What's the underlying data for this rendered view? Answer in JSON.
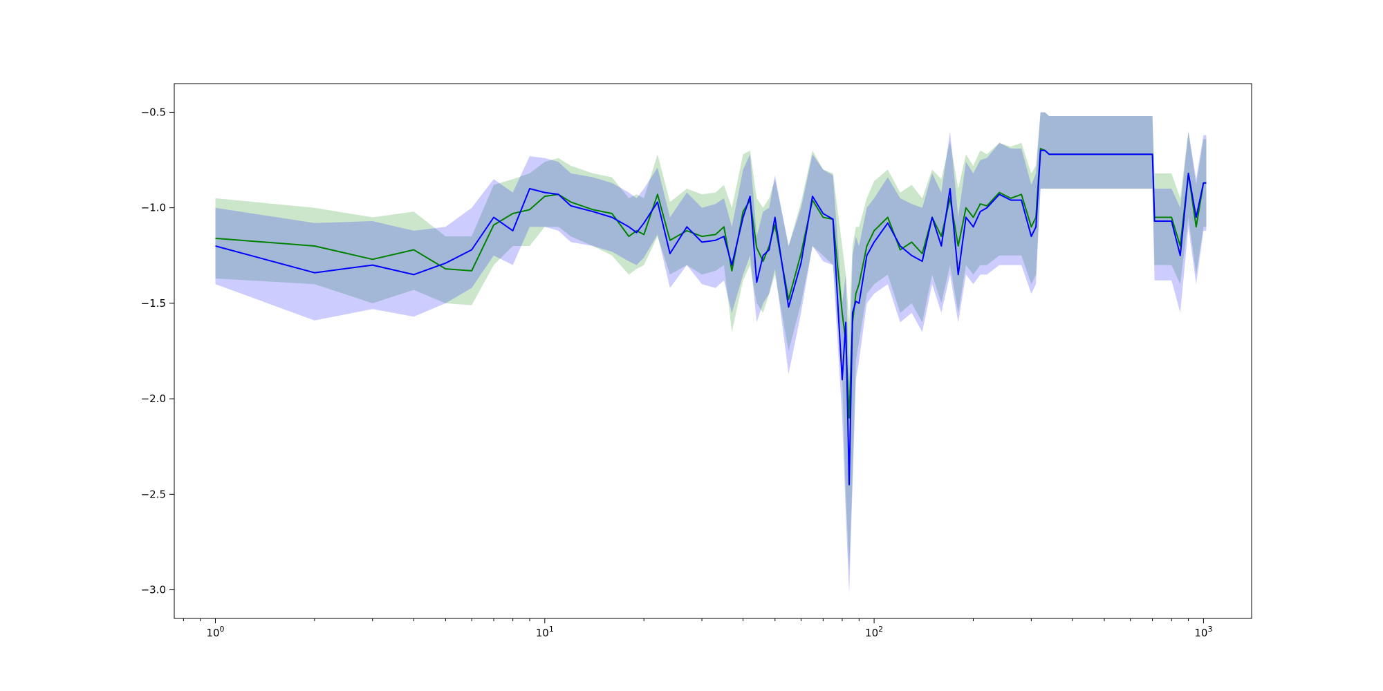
{
  "chart_data": {
    "type": "line",
    "title": "",
    "xlabel": "",
    "ylabel": "",
    "xscale": "log",
    "xlim": [
      0.75,
      1400
    ],
    "ylim": [
      -3.15,
      -0.35
    ],
    "xticks": [
      {
        "value": 1,
        "base": "10",
        "exp": "0"
      },
      {
        "value": 10,
        "base": "10",
        "exp": "1"
      },
      {
        "value": 100,
        "base": "10",
        "exp": "2"
      },
      {
        "value": 1000,
        "base": "10",
        "exp": "3"
      }
    ],
    "yticks": [
      {
        "value": -0.5,
        "label": "−0.5"
      },
      {
        "value": -1.0,
        "label": "−1.0"
      },
      {
        "value": -1.5,
        "label": "−1.5"
      },
      {
        "value": -2.0,
        "label": "−2.0"
      },
      {
        "value": -2.5,
        "label": "−2.5"
      },
      {
        "value": -3.0,
        "label": "−3.0"
      }
    ],
    "grid": false,
    "legend": "none",
    "series": [
      {
        "color": "#008000",
        "x": [
          1,
          2,
          3,
          4,
          5,
          6,
          7,
          8,
          9,
          10,
          11,
          12,
          14,
          16,
          18,
          19,
          20,
          22,
          24,
          27,
          30,
          33,
          35,
          37,
          40,
          42,
          44,
          46,
          48,
          50,
          55,
          60,
          65,
          70,
          75,
          80,
          82,
          84,
          86,
          88,
          90,
          95,
          100,
          110,
          120,
          130,
          140,
          150,
          160,
          170,
          180,
          190,
          200,
          210,
          220,
          240,
          260,
          280,
          300,
          310,
          320,
          330,
          340,
          400,
          500,
          600,
          700,
          710,
          720,
          800,
          850,
          900,
          950,
          1000,
          1020
        ],
        "y": [
          -1.16,
          -1.2,
          -1.27,
          -1.22,
          -1.32,
          -1.33,
          -1.09,
          -1.03,
          -1.01,
          -0.94,
          -0.93,
          -0.97,
          -1.01,
          -1.03,
          -1.15,
          -1.12,
          -1.14,
          -0.93,
          -1.17,
          -1.12,
          -1.15,
          -1.14,
          -1.1,
          -1.33,
          -1.02,
          -0.96,
          -1.21,
          -1.28,
          -1.2,
          -1.09,
          -1.48,
          -1.24,
          -0.96,
          -1.05,
          -1.06,
          -1.55,
          -1.7,
          -2.1,
          -1.6,
          -1.45,
          -1.4,
          -1.2,
          -1.12,
          -1.05,
          -1.22,
          -1.18,
          -1.24,
          -1.05,
          -1.15,
          -0.95,
          -1.2,
          -1.0,
          -1.05,
          -0.98,
          -0.99,
          -0.92,
          -0.95,
          -0.93,
          -1.1,
          -1.05,
          -0.69,
          -0.7,
          -0.72,
          -0.72,
          -0.72,
          -0.72,
          -0.72,
          -1.05,
          -1.05,
          -1.05,
          -1.2,
          -0.82,
          -1.1,
          -0.87,
          -0.87
        ],
        "y_lower": [
          -1.37,
          -1.4,
          -1.5,
          -1.43,
          -1.5,
          -1.51,
          -1.3,
          -1.2,
          -1.2,
          -1.1,
          -1.1,
          -1.15,
          -1.2,
          -1.25,
          -1.35,
          -1.32,
          -1.3,
          -1.15,
          -1.35,
          -1.3,
          -1.35,
          -1.33,
          -1.3,
          -1.65,
          -1.38,
          -1.3,
          -1.5,
          -1.55,
          -1.45,
          -1.35,
          -1.75,
          -1.5,
          -1.2,
          -1.25,
          -1.3,
          -1.9,
          -2.5,
          -2.9,
          -2.4,
          -1.8,
          -1.7,
          -1.45,
          -1.4,
          -1.35,
          -1.55,
          -1.5,
          -1.6,
          -1.35,
          -1.5,
          -1.3,
          -1.55,
          -1.3,
          -1.35,
          -1.3,
          -1.3,
          -1.25,
          -1.25,
          -1.25,
          -1.4,
          -1.35,
          -0.9,
          -0.9,
          -0.9,
          -0.9,
          -0.9,
          -0.9,
          -0.9,
          -1.3,
          -1.3,
          -1.3,
          -1.4,
          -1.05,
          -1.35,
          -1.1,
          -1.1
        ],
        "y_upper": [
          -0.95,
          -1.0,
          -1.05,
          -1.02,
          -1.15,
          -1.15,
          -0.88,
          -0.85,
          -0.82,
          -0.76,
          -0.74,
          -0.78,
          -0.82,
          -0.84,
          -0.95,
          -0.93,
          -0.95,
          -0.72,
          -0.97,
          -0.9,
          -0.93,
          -0.92,
          -0.88,
          -1.0,
          -0.72,
          -0.7,
          -0.95,
          -1.0,
          -0.95,
          -0.85,
          -1.2,
          -0.97,
          -0.7,
          -0.8,
          -0.82,
          -1.2,
          -1.35,
          -1.6,
          -1.2,
          -1.1,
          -1.1,
          -0.95,
          -0.86,
          -0.8,
          -0.92,
          -0.88,
          -0.95,
          -0.8,
          -0.85,
          -0.65,
          -0.9,
          -0.72,
          -0.78,
          -0.7,
          -0.72,
          -0.66,
          -0.68,
          -0.66,
          -0.82,
          -0.78,
          -0.5,
          -0.5,
          -0.52,
          -0.52,
          -0.52,
          -0.52,
          -0.52,
          -0.82,
          -0.82,
          -0.82,
          -0.95,
          -0.6,
          -0.88,
          -0.64,
          -0.64
        ]
      },
      {
        "color": "#0000ff",
        "x": [
          1,
          2,
          3,
          4,
          5,
          6,
          7,
          8,
          9,
          10,
          11,
          12,
          14,
          16,
          18,
          19,
          20,
          22,
          24,
          27,
          30,
          33,
          35,
          37,
          40,
          42,
          44,
          46,
          48,
          50,
          55,
          60,
          65,
          70,
          75,
          80,
          82,
          84,
          86,
          88,
          90,
          95,
          100,
          110,
          120,
          130,
          140,
          150,
          160,
          170,
          180,
          190,
          200,
          210,
          220,
          240,
          260,
          280,
          300,
          310,
          320,
          330,
          340,
          400,
          500,
          600,
          700,
          710,
          720,
          800,
          850,
          900,
          950,
          1000,
          1020
        ],
        "y": [
          -1.2,
          -1.34,
          -1.3,
          -1.35,
          -1.29,
          -1.22,
          -1.05,
          -1.12,
          -0.9,
          -0.92,
          -0.93,
          -0.99,
          -1.02,
          -1.05,
          -1.1,
          -1.13,
          -1.08,
          -0.97,
          -1.24,
          -1.1,
          -1.18,
          -1.17,
          -1.15,
          -1.3,
          -1.05,
          -0.94,
          -1.39,
          -1.25,
          -1.22,
          -1.05,
          -1.52,
          -1.29,
          -0.94,
          -1.03,
          -1.06,
          -1.9,
          -1.6,
          -2.45,
          -1.55,
          -1.49,
          -1.5,
          -1.25,
          -1.18,
          -1.08,
          -1.2,
          -1.25,
          -1.28,
          -1.05,
          -1.2,
          -0.9,
          -1.35,
          -1.05,
          -1.1,
          -1.02,
          -1.0,
          -0.93,
          -0.96,
          -0.96,
          -1.15,
          -1.1,
          -0.7,
          -0.7,
          -0.72,
          -0.72,
          -0.72,
          -0.72,
          -0.72,
          -1.07,
          -1.07,
          -1.07,
          -1.25,
          -0.82,
          -1.05,
          -0.87,
          -0.87
        ],
        "y_lower": [
          -1.4,
          -1.59,
          -1.53,
          -1.57,
          -1.5,
          -1.42,
          -1.25,
          -1.3,
          -1.1,
          -1.1,
          -1.12,
          -1.18,
          -1.2,
          -1.23,
          -1.28,
          -1.3,
          -1.26,
          -1.14,
          -1.42,
          -1.3,
          -1.4,
          -1.42,
          -1.38,
          -1.55,
          -1.35,
          -1.25,
          -1.6,
          -1.5,
          -1.45,
          -1.32,
          -1.87,
          -1.55,
          -1.2,
          -1.28,
          -1.3,
          -2.1,
          -2.6,
          -3.02,
          -2.45,
          -1.9,
          -1.8,
          -1.5,
          -1.45,
          -1.4,
          -1.6,
          -1.55,
          -1.65,
          -1.4,
          -1.55,
          -1.35,
          -1.6,
          -1.35,
          -1.4,
          -1.35,
          -1.35,
          -1.3,
          -1.3,
          -1.3,
          -1.45,
          -1.4,
          -0.9,
          -0.9,
          -0.9,
          -0.9,
          -0.9,
          -0.9,
          -0.9,
          -1.38,
          -1.38,
          -1.38,
          -1.55,
          -1.1,
          -1.4,
          -1.12,
          -1.12
        ],
        "y_upper": [
          -1.0,
          -1.08,
          -1.07,
          -1.12,
          -1.1,
          -1.0,
          -0.85,
          -0.92,
          -0.73,
          -0.74,
          -0.76,
          -0.82,
          -0.84,
          -0.87,
          -0.92,
          -0.95,
          -0.9,
          -0.79,
          -1.05,
          -0.92,
          -1.0,
          -0.98,
          -0.95,
          -1.1,
          -0.8,
          -0.72,
          -1.15,
          -1.02,
          -1.0,
          -0.83,
          -1.2,
          -1.0,
          -0.72,
          -0.8,
          -0.83,
          -1.5,
          -1.35,
          -1.9,
          -1.25,
          -1.15,
          -1.2,
          -1.0,
          -0.95,
          -0.84,
          -0.95,
          -0.98,
          -1.0,
          -0.82,
          -0.92,
          -0.6,
          -1.05,
          -0.76,
          -0.82,
          -0.75,
          -0.74,
          -0.66,
          -0.69,
          -0.69,
          -0.88,
          -0.82,
          -0.5,
          -0.5,
          -0.52,
          -0.52,
          -0.52,
          -0.52,
          -0.52,
          -0.9,
          -0.9,
          -0.9,
          -1.0,
          -0.6,
          -0.85,
          -0.62,
          -0.62
        ]
      }
    ]
  }
}
